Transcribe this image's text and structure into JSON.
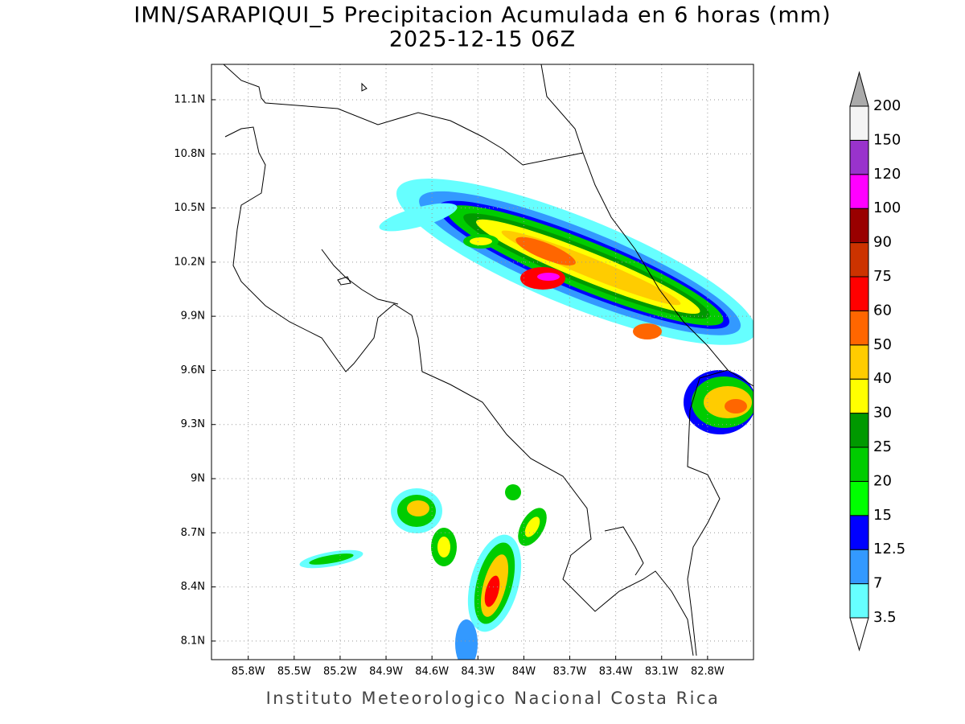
{
  "map": {
    "title": "IMN/SARAPIQUI_5 Precipitacion Acumulada en 6 horas (mm)",
    "subtitle": "2025-12-15 06Z",
    "footer": "Instituto Meteorologico Nacional Costa Rica",
    "lon_range": [
      -86.04,
      -82.5
    ],
    "lat_range": [
      7.997,
      11.296
    ],
    "grid": true,
    "lon_ticks": [
      {
        "value": -85.8,
        "label": "85.8W"
      },
      {
        "value": -85.5,
        "label": "85.5W"
      },
      {
        "value": -85.2,
        "label": "85.2W"
      },
      {
        "value": -84.9,
        "label": "84.9W"
      },
      {
        "value": -84.6,
        "label": "84.6W"
      },
      {
        "value": -84.3,
        "label": "84.3W"
      },
      {
        "value": -84.0,
        "label": "84W"
      },
      {
        "value": -83.7,
        "label": "83.7W"
      },
      {
        "value": -83.4,
        "label": "83.4W"
      },
      {
        "value": -83.1,
        "label": "83.1W"
      },
      {
        "value": -82.8,
        "label": "82.8W"
      }
    ],
    "lat_ticks": [
      {
        "value": 8.1,
        "label": "8.1N"
      },
      {
        "value": 8.4,
        "label": "8.4N"
      },
      {
        "value": 8.7,
        "label": "8.7N"
      },
      {
        "value": 9.0,
        "label": "9N"
      },
      {
        "value": 9.3,
        "label": "9.3N"
      },
      {
        "value": 9.6,
        "label": "9.6N"
      },
      {
        "value": 9.9,
        "label": "9.9N"
      },
      {
        "value": 10.2,
        "label": "10.2N"
      },
      {
        "value": 10.5,
        "label": "10.5N"
      },
      {
        "value": 10.8,
        "label": "10.8N"
      },
      {
        "value": 11.1,
        "label": "11.1N"
      }
    ],
    "colorbar": {
      "levels": [
        3.5,
        7,
        12.5,
        15,
        20,
        25,
        30,
        40,
        50,
        60,
        75,
        90,
        100,
        120,
        150,
        200
      ],
      "colors": [
        "#66ffff",
        "#3399ff",
        "#0000ff",
        "#00ff00",
        "#00cc00",
        "#009900",
        "#ffff00",
        "#ffcc00",
        "#ff6600",
        "#ff0000",
        "#cc3300",
        "#990000",
        "#ff00ff",
        "#9933cc",
        "#f4f4f4"
      ],
      "under_color": "#ffffff",
      "over_color": "#aaaaaa"
    }
  }
}
